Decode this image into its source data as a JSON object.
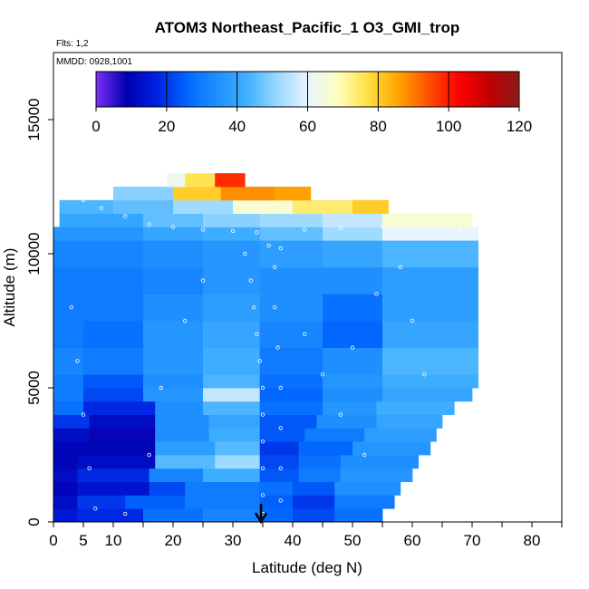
{
  "chart_data": {
    "type": "heatmap",
    "title": "ATOM3 Northeast_Pacific_1 O3_GMI_trop",
    "subtitle_flights": "Flts: 1,2",
    "subtitle_dates": "MMDD: 0928,1001",
    "xlabel": "Latitude (deg N)",
    "ylabel": "Altitude (m)",
    "xlim": [
      0,
      85
    ],
    "ylim": [
      0,
      17500
    ],
    "x_ticks": [
      0,
      5,
      10,
      20,
      30,
      40,
      50,
      60,
      70,
      80
    ],
    "x_tick_labels": [
      "0",
      "5",
      "10",
      "20",
      "30",
      "40",
      "50",
      "60",
      "70",
      "80"
    ],
    "y_ticks": [
      0,
      5000,
      10000,
      15000
    ],
    "y_tick_labels": [
      "0",
      "5000",
      "10000",
      "15000"
    ],
    "colorbar": {
      "min": 0,
      "max": 120,
      "ticks": [
        0,
        20,
        40,
        60,
        80,
        100,
        120
      ],
      "tick_labels": [
        "0",
        "20",
        "40",
        "60",
        "80",
        "100",
        "120"
      ],
      "colors": [
        "#7b2ff7",
        "#0000b0",
        "#0020e0",
        "#0066ff",
        "#1e90ff",
        "#40b0ff",
        "#9ad8ff",
        "#e8f4ff",
        "#ffffc0",
        "#ffe040",
        "#ffa500",
        "#ff5000",
        "#ff0000",
        "#c00000",
        "#8b1a1a"
      ]
    },
    "marker_latitude": 35,
    "layers": [
      {
        "alt": [
          0,
          500
        ],
        "segments": [
          [
            0,
            4,
            15
          ],
          [
            4,
            15,
            18
          ],
          [
            15,
            25,
            28
          ],
          [
            25,
            34.5,
            32
          ],
          [
            34.5,
            40,
            26
          ],
          [
            40,
            47,
            22
          ],
          [
            47,
            55,
            28
          ]
        ]
      },
      {
        "alt": [
          500,
          1000
        ],
        "segments": [
          [
            0,
            4,
            12
          ],
          [
            4,
            12,
            20
          ],
          [
            12,
            22,
            25
          ],
          [
            22,
            34.5,
            30
          ],
          [
            34.5,
            40,
            25
          ],
          [
            40,
            47,
            20
          ],
          [
            47,
            57,
            30
          ]
        ]
      },
      {
        "alt": [
          1000,
          1500
        ],
        "segments": [
          [
            0,
            4,
            10
          ],
          [
            4,
            16,
            14
          ],
          [
            16,
            22,
            22
          ],
          [
            22,
            34.5,
            30
          ],
          [
            34.5,
            40,
            28
          ],
          [
            40,
            47,
            24
          ],
          [
            47,
            58,
            34
          ]
        ]
      },
      {
        "alt": [
          1500,
          2000
        ],
        "segments": [
          [
            0,
            4,
            12
          ],
          [
            4,
            16,
            18
          ],
          [
            16,
            25,
            32
          ],
          [
            25,
            34.5,
            42
          ],
          [
            34.5,
            41,
            24
          ],
          [
            41,
            48,
            30
          ],
          [
            48,
            60,
            36
          ]
        ]
      },
      {
        "alt": [
          2000,
          2500
        ],
        "segments": [
          [
            0,
            4,
            10
          ],
          [
            4,
            17,
            12
          ],
          [
            17,
            27,
            45
          ],
          [
            27,
            34.5,
            52
          ],
          [
            34.5,
            41,
            22
          ],
          [
            41,
            48,
            28
          ],
          [
            48,
            61,
            34
          ]
        ]
      },
      {
        "alt": [
          2500,
          3000
        ],
        "segments": [
          [
            0,
            4,
            10
          ],
          [
            4,
            17,
            10
          ],
          [
            17,
            27,
            38
          ],
          [
            27,
            34.5,
            45
          ],
          [
            34.5,
            41,
            20
          ],
          [
            41,
            50,
            26
          ],
          [
            50,
            63,
            36
          ]
        ]
      },
      {
        "alt": [
          3000,
          3500
        ],
        "segments": [
          [
            0,
            6,
            12
          ],
          [
            6,
            17,
            8
          ],
          [
            17,
            26,
            34
          ],
          [
            26,
            34.5,
            42
          ],
          [
            34.5,
            42,
            24
          ],
          [
            42,
            52,
            30
          ],
          [
            52,
            64,
            38
          ]
        ]
      },
      {
        "alt": [
          3500,
          4000
        ],
        "segments": [
          [
            0,
            6,
            20
          ],
          [
            6,
            17,
            12
          ],
          [
            17,
            26,
            34
          ],
          [
            26,
            34.5,
            40
          ],
          [
            34.5,
            44,
            24
          ],
          [
            44,
            54,
            34
          ],
          [
            54,
            65,
            40
          ]
        ]
      },
      {
        "alt": [
          4000,
          4500
        ],
        "segments": [
          [
            0,
            5,
            28
          ],
          [
            5,
            17,
            18
          ],
          [
            17,
            25,
            34
          ],
          [
            25,
            34.5,
            44
          ],
          [
            34.5,
            45,
            28
          ],
          [
            45,
            54,
            36
          ],
          [
            54,
            67,
            42
          ]
        ]
      },
      {
        "alt": [
          4500,
          5000
        ],
        "segments": [
          [
            0,
            5,
            30
          ],
          [
            5,
            15,
            22
          ],
          [
            15,
            25,
            36
          ],
          [
            25,
            34.5,
            56
          ],
          [
            34.5,
            45,
            26
          ],
          [
            45,
            55,
            34
          ],
          [
            55,
            70,
            40
          ]
        ]
      },
      {
        "alt": [
          5000,
          5500
        ],
        "segments": [
          [
            0,
            5,
            30
          ],
          [
            5,
            15,
            24
          ],
          [
            15,
            25,
            34
          ],
          [
            25,
            34.5,
            44
          ],
          [
            34.5,
            45,
            28
          ],
          [
            45,
            55,
            36
          ],
          [
            55,
            71,
            42
          ]
        ]
      },
      {
        "alt": [
          5500,
          6500
        ],
        "segments": [
          [
            0,
            5,
            32
          ],
          [
            5,
            15,
            30
          ],
          [
            15,
            25,
            36
          ],
          [
            25,
            34.5,
            42
          ],
          [
            34.5,
            45,
            30
          ],
          [
            45,
            55,
            34
          ],
          [
            55,
            71,
            44
          ]
        ]
      },
      {
        "alt": [
          6500,
          7500
        ],
        "segments": [
          [
            0,
            5,
            30
          ],
          [
            5,
            15,
            28
          ],
          [
            15,
            25,
            36
          ],
          [
            25,
            34.5,
            40
          ],
          [
            34.5,
            45,
            32
          ],
          [
            45,
            55,
            26
          ],
          [
            55,
            71,
            40
          ]
        ]
      },
      {
        "alt": [
          7500,
          8500
        ],
        "segments": [
          [
            0,
            5,
            30
          ],
          [
            5,
            15,
            30
          ],
          [
            15,
            25,
            34
          ],
          [
            25,
            34.5,
            38
          ],
          [
            34.5,
            45,
            34
          ],
          [
            45,
            55,
            28
          ],
          [
            55,
            71,
            38
          ]
        ]
      },
      {
        "alt": [
          8500,
          9500
        ],
        "segments": [
          [
            0,
            5,
            30
          ],
          [
            5,
            15,
            30
          ],
          [
            15,
            25,
            32
          ],
          [
            25,
            34.5,
            36
          ],
          [
            34.5,
            45,
            34
          ],
          [
            45,
            55,
            34
          ],
          [
            55,
            71,
            38
          ]
        ]
      },
      {
        "alt": [
          9500,
          10500
        ],
        "segments": [
          [
            0,
            5,
            32
          ],
          [
            5,
            15,
            32
          ],
          [
            15,
            25,
            34
          ],
          [
            25,
            34.5,
            36
          ],
          [
            34.5,
            45,
            38
          ],
          [
            45,
            55,
            40
          ],
          [
            55,
            71,
            44
          ]
        ]
      },
      {
        "alt": [
          10500,
          11000
        ],
        "segments": [
          [
            0,
            5,
            36
          ],
          [
            5,
            15,
            36
          ],
          [
            15,
            25,
            40
          ],
          [
            25,
            34.5,
            42
          ],
          [
            34.5,
            45,
            46
          ],
          [
            45,
            55,
            52
          ],
          [
            55,
            71,
            60
          ]
        ]
      },
      {
        "alt": [
          11000,
          11500
        ],
        "segments": [
          [
            1,
            5,
            40
          ],
          [
            5,
            15,
            40
          ],
          [
            15,
            25,
            46
          ],
          [
            25,
            34.5,
            50
          ],
          [
            34.5,
            45,
            52
          ],
          [
            45,
            55,
            56
          ],
          [
            55,
            70,
            66
          ]
        ]
      },
      {
        "alt": [
          11500,
          12000
        ],
        "segments": [
          [
            1,
            10,
            44
          ],
          [
            10,
            20,
            46
          ],
          [
            20,
            30,
            52
          ],
          [
            30,
            40,
            66
          ],
          [
            40,
            50,
            74
          ],
          [
            50,
            56,
            80
          ]
        ]
      },
      {
        "alt": [
          12000,
          12500
        ],
        "segments": [
          [
            10,
            20,
            50
          ],
          [
            20,
            28,
            80
          ],
          [
            28,
            37,
            88
          ],
          [
            37,
            43,
            86
          ]
        ]
      },
      {
        "alt": [
          12500,
          13000
        ],
        "segments": [
          [
            19,
            22,
            62
          ],
          [
            22,
            27,
            76
          ],
          [
            27,
            32,
            98
          ]
        ]
      }
    ],
    "flight_track_points": [
      [
        5,
        12000
      ],
      [
        8,
        11700
      ],
      [
        12,
        11400
      ],
      [
        16,
        11100
      ],
      [
        20,
        11000
      ],
      [
        25,
        10900
      ],
      [
        30,
        10850
      ],
      [
        34,
        10800
      ],
      [
        36,
        10300
      ],
      [
        38,
        10200
      ],
      [
        42,
        10900
      ],
      [
        48,
        10950
      ],
      [
        55,
        11000
      ],
      [
        62,
        11100
      ],
      [
        68,
        10900
      ],
      [
        32,
        10000
      ],
      [
        33,
        9000
      ],
      [
        33.5,
        8000
      ],
      [
        34,
        7000
      ],
      [
        34.5,
        6000
      ],
      [
        35,
        5000
      ],
      [
        35,
        4000
      ],
      [
        35,
        3000
      ],
      [
        35,
        2000
      ],
      [
        35,
        1000
      ],
      [
        35,
        300
      ],
      [
        37,
        9500
      ],
      [
        37,
        8000
      ],
      [
        37.5,
        6500
      ],
      [
        38,
        5000
      ],
      [
        38,
        3500
      ],
      [
        38,
        2000
      ],
      [
        38,
        800
      ],
      [
        3,
        8000
      ],
      [
        4,
        6000
      ],
      [
        5,
        4000
      ],
      [
        6,
        2000
      ],
      [
        7,
        500
      ],
      [
        12,
        300
      ],
      [
        16,
        2500
      ],
      [
        18,
        5000
      ],
      [
        22,
        7500
      ],
      [
        25,
        9000
      ],
      [
        42,
        7000
      ],
      [
        45,
        5500
      ],
      [
        48,
        4000
      ],
      [
        52,
        2500
      ],
      [
        50,
        6500
      ],
      [
        54,
        8500
      ],
      [
        58,
        9500
      ],
      [
        60,
        7500
      ],
      [
        62,
        5500
      ]
    ]
  }
}
